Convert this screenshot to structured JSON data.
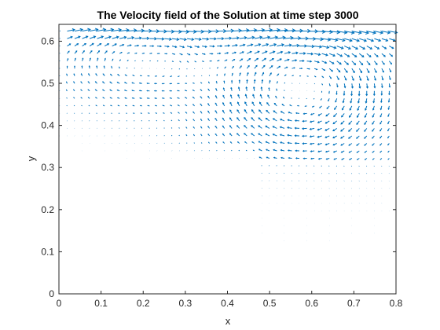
{
  "chart_data": {
    "type": "quiver",
    "title": "The Velocity field of the Solution at time step 3000",
    "xlabel": "x",
    "ylabel": "y",
    "xlim": [
      0,
      0.8
    ],
    "ylim": [
      0,
      0.64
    ],
    "xticks": [
      "0",
      "0.1",
      "0.2",
      "0.3",
      "0.4",
      "0.5",
      "0.6",
      "0.7",
      "0.8"
    ],
    "yticks": [
      "0",
      "0.1",
      "0.2",
      "0.3",
      "0.4",
      "0.5",
      "0.6"
    ],
    "grid": false,
    "legend": "none",
    "arrow_color": "#0072BD",
    "domain": "L-shaped cavity: flow region is y >= 0.32 for x < 0.48, and full height for x >= 0.48",
    "vortices": [
      {
        "x": 0.58,
        "y": 0.49,
        "sense": "clockwise"
      },
      {
        "x": 0.2,
        "y": 0.56,
        "sense": "clockwise"
      }
    ]
  }
}
